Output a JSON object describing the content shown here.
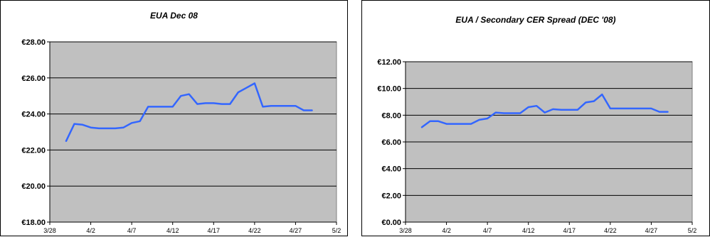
{
  "chart_data": [
    {
      "type": "line",
      "title": "EUA Dec 08",
      "x_tick_labels": [
        "3/28",
        "4/2",
        "4/7",
        "4/12",
        "4/17",
        "4/22",
        "4/27",
        "5/2"
      ],
      "y_tick_labels": [
        "€18.00",
        "€20.00",
        "€22.00",
        "€24.00",
        "€26.00",
        "€28.00"
      ],
      "ylim": [
        18,
        28
      ],
      "xlim": [
        0,
        35
      ],
      "grid": true,
      "plot_background": "#c0c0c0",
      "line_color": "#3366ff",
      "series": [
        {
          "x": [
            2,
            3,
            4,
            5,
            6,
            7,
            8,
            9,
            10,
            11,
            12,
            13,
            14,
            15,
            16,
            17,
            18,
            19,
            20,
            21,
            22,
            23,
            24,
            25,
            26,
            27,
            28,
            29,
            30,
            31,
            32
          ],
          "values": [
            22.5,
            23.45,
            23.4,
            23.25,
            23.2,
            23.2,
            23.2,
            23.25,
            23.5,
            23.6,
            24.4,
            24.4,
            24.4,
            24.4,
            25.0,
            25.1,
            24.55,
            24.6,
            24.6,
            24.55,
            24.55,
            25.2,
            25.45,
            25.7,
            24.4,
            24.45,
            24.45,
            24.45,
            24.45,
            24.2,
            24.2
          ]
        }
      ]
    },
    {
      "type": "line",
      "title": "EUA / Secondary CER Spread (DEC '08)",
      "x_tick_labels": [
        "3/28",
        "4/2",
        "4/7",
        "4/12",
        "4/17",
        "4/22",
        "4/27",
        "5/2"
      ],
      "y_tick_labels": [
        "€0.00",
        "€2.00",
        "€4.00",
        "€6.00",
        "€8.00",
        "€10.00",
        "€12.00"
      ],
      "ylim": [
        0,
        12
      ],
      "xlim": [
        0,
        35
      ],
      "grid": true,
      "plot_background": "#c0c0c0",
      "line_color": "#3366ff",
      "series": [
        {
          "x": [
            2,
            3,
            4,
            5,
            6,
            7,
            8,
            9,
            10,
            11,
            12,
            13,
            14,
            15,
            16,
            17,
            18,
            19,
            20,
            21,
            22,
            23,
            24,
            25,
            26,
            27,
            28,
            29,
            30,
            31,
            32
          ],
          "values": [
            7.1,
            7.55,
            7.55,
            7.35,
            7.35,
            7.35,
            7.35,
            7.65,
            7.75,
            8.2,
            8.15,
            8.15,
            8.15,
            8.6,
            8.7,
            8.2,
            8.45,
            8.4,
            8.4,
            8.4,
            8.95,
            9.05,
            9.55,
            8.5,
            8.5,
            8.5,
            8.5,
            8.5,
            8.5,
            8.25,
            8.25
          ]
        }
      ]
    }
  ]
}
